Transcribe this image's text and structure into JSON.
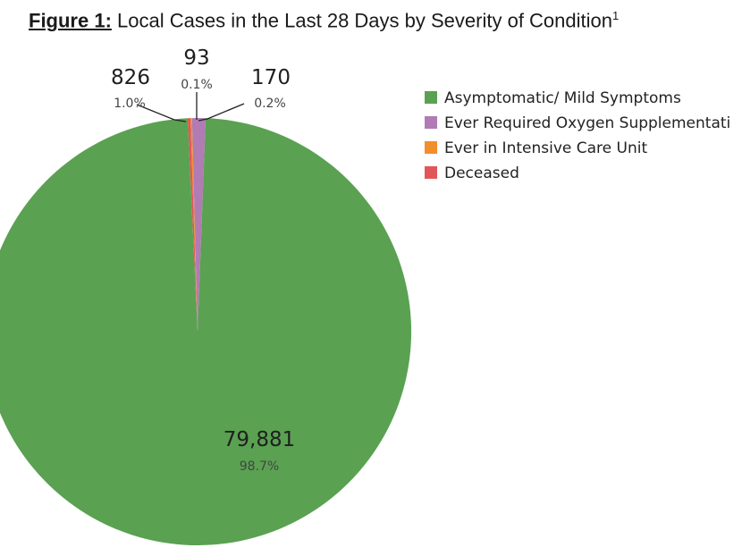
{
  "title": {
    "figure_label": "Figure 1:",
    "text": "Local Cases in the Last 28 Days by Severity of Condition",
    "footnote_mark": "1"
  },
  "chart_data": {
    "type": "pie",
    "title": "Figure 1: Local Cases in the Last 28 Days by Severity of Condition",
    "legend_position": "right",
    "slices": [
      {
        "label": "Asymptomatic/ Mild Symptoms",
        "value": 79881,
        "value_label": "79,881",
        "percent_label": "98.7%",
        "color": "#5aa152"
      },
      {
        "label": "Ever Required Oxygen Supplementati",
        "value": 826,
        "value_label": "826",
        "percent_label": "1.0%",
        "color": "#b07cb3"
      },
      {
        "label": "Ever in Intensive Care Unit",
        "value": 93,
        "value_label": "93",
        "percent_label": "0.1%",
        "color": "#f28e2b"
      },
      {
        "label": "Deceased",
        "value": 170,
        "value_label": "170",
        "percent_label": "0.2%",
        "color": "#e15759"
      }
    ]
  }
}
